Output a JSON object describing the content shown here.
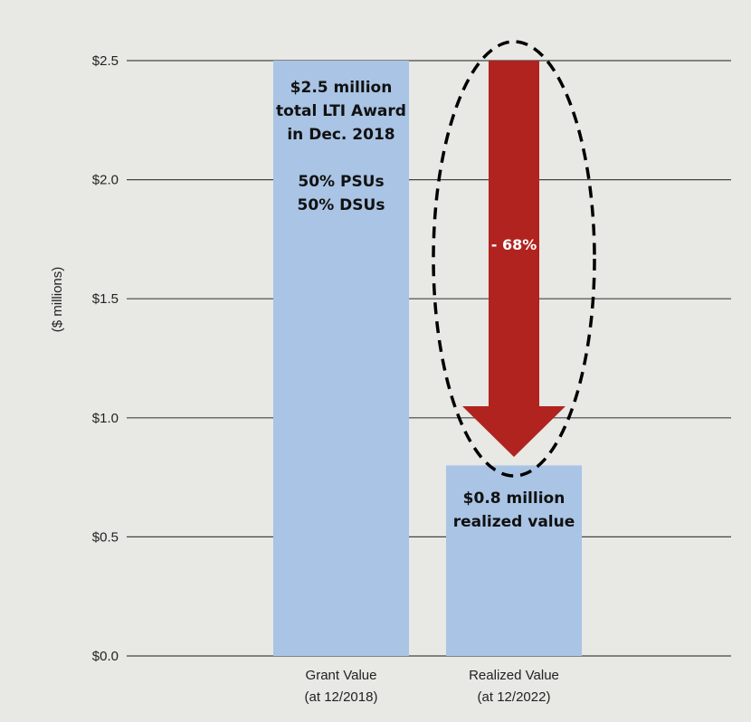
{
  "chart_data": {
    "type": "bar",
    "ylabel": "($ millions)",
    "ylim": [
      0,
      2.5
    ],
    "yticks": [
      0.0,
      0.5,
      1.0,
      1.5,
      2.0,
      2.5
    ],
    "ytick_labels": [
      "$0.0",
      "$0.5",
      "$1.0",
      "$1.5",
      "$2.0",
      "$2.5"
    ],
    "grid": true,
    "categories": [
      {
        "line1": "Grant Value",
        "line2": "(at 12/2018)"
      },
      {
        "line1": "Realized Value",
        "line2": "(at 12/2022)"
      }
    ],
    "values": [
      2.5,
      0.8
    ],
    "bar_color": "#a9c4e4",
    "grid_color": "#444444",
    "annotations": {
      "grant": [
        "$2.5 million",
        "total LTI Award",
        "in Dec. 2018",
        "",
        "50% PSUs",
        "50% DSUs"
      ],
      "realized": [
        "$0.8 million",
        "realized value"
      ]
    },
    "arrow": {
      "label": "- 68%",
      "from_value": 2.5,
      "to_value": 0.8,
      "color": "#b0231f",
      "ellipse_style": "dashed"
    }
  }
}
